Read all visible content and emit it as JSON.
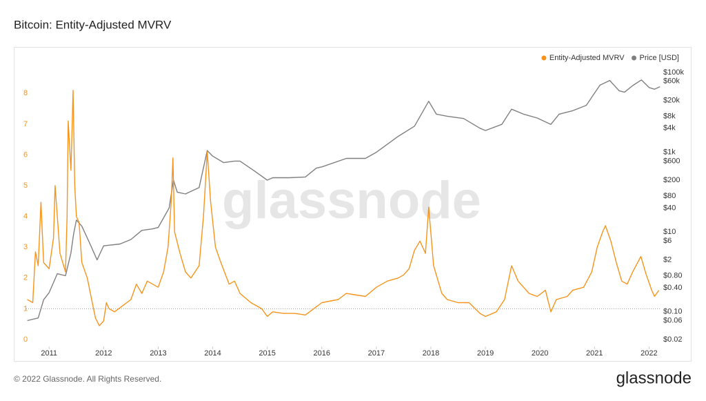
{
  "chart_data": {
    "type": "line",
    "title": "Bitcoin: Entity-Adjusted MVRV",
    "watermark": "glassnode",
    "xlim": [
      2010.58,
      2022.21
    ],
    "xticks": [
      2011,
      2012,
      2013,
      2014,
      2015,
      2016,
      2017,
      2018,
      2019,
      2020,
      2021,
      2022
    ],
    "ylim": [
      -0.18,
      9.06
    ],
    "yticks": [
      0,
      1,
      2,
      3,
      4,
      5,
      6,
      7,
      8
    ],
    "y2lim": [
      0.0146,
      197000
    ],
    "y2scale": "log",
    "y2ticks": [
      {
        "value": 100000,
        "label": "$100k"
      },
      {
        "value": 60000,
        "label": "$60k"
      },
      {
        "value": 20000,
        "label": "$20k"
      },
      {
        "value": 8000,
        "label": "$8k"
      },
      {
        "value": 4000,
        "label": "$4k"
      },
      {
        "value": 1000,
        "label": "$1k"
      },
      {
        "value": 600,
        "label": "$600"
      },
      {
        "value": 200,
        "label": "$200"
      },
      {
        "value": 80,
        "label": "$80"
      },
      {
        "value": 40,
        "label": "$40"
      },
      {
        "value": 10,
        "label": "$10"
      },
      {
        "value": 6,
        "label": "$6"
      },
      {
        "value": 2,
        "label": "$2"
      },
      {
        "value": 0.8,
        "label": "$0.80"
      },
      {
        "value": 0.4,
        "label": "$0.40"
      },
      {
        "value": 0.1,
        "label": "$0.10"
      },
      {
        "value": 0.06,
        "label": "$0.06"
      },
      {
        "value": 0.02,
        "label": "$0.02"
      }
    ],
    "reference_line": 1,
    "legend": "top-right",
    "series": [
      {
        "name": "Entity-Adjusted MVRV",
        "color": "#f7931a",
        "x": [
          2010.6,
          2010.7,
          2010.75,
          2010.8,
          2010.85,
          2010.9,
          2011.0,
          2011.08,
          2011.11,
          2011.2,
          2011.3,
          2011.33,
          2011.35,
          2011.4,
          2011.44,
          2011.47,
          2011.5,
          2011.55,
          2011.6,
          2011.7,
          2011.78,
          2011.85,
          2011.92,
          2012.0,
          2012.05,
          2012.1,
          2012.2,
          2012.35,
          2012.5,
          2012.6,
          2012.7,
          2012.8,
          2013.0,
          2013.1,
          2013.18,
          2013.24,
          2013.27,
          2013.3,
          2013.4,
          2013.5,
          2013.6,
          2013.75,
          2013.83,
          2013.9,
          2013.96,
          2014.05,
          2014.15,
          2014.3,
          2014.4,
          2014.5,
          2014.7,
          2014.9,
          2015.0,
          2015.1,
          2015.3,
          2015.5,
          2015.7,
          2015.85,
          2016.0,
          2016.3,
          2016.45,
          2016.8,
          2017.0,
          2017.2,
          2017.4,
          2017.5,
          2017.6,
          2017.7,
          2017.8,
          2017.9,
          2017.96,
          2018.05,
          2018.2,
          2018.3,
          2018.5,
          2018.7,
          2018.9,
          2019.0,
          2019.2,
          2019.35,
          2019.48,
          2019.6,
          2019.8,
          2019.95,
          2020.1,
          2020.2,
          2020.3,
          2020.5,
          2020.6,
          2020.8,
          2020.95,
          2021.05,
          2021.15,
          2021.2,
          2021.3,
          2021.4,
          2021.5,
          2021.6,
          2021.7,
          2021.85,
          2021.95,
          2022.05,
          2022.1,
          2022.18
        ],
        "values": [
          1.3,
          1.2,
          2.85,
          2.4,
          4.46,
          2.5,
          2.3,
          3.3,
          5.0,
          2.8,
          2.2,
          4.0,
          7.1,
          5.5,
          8.1,
          5.0,
          4.0,
          3.8,
          2.5,
          2.0,
          1.3,
          0.7,
          0.45,
          0.6,
          1.2,
          1.0,
          0.9,
          1.1,
          1.3,
          1.8,
          1.5,
          1.9,
          1.7,
          2.2,
          3.0,
          4.5,
          5.9,
          3.5,
          2.8,
          2.2,
          2.0,
          2.4,
          4.0,
          6.1,
          4.5,
          3.0,
          2.5,
          1.8,
          1.9,
          1.5,
          1.2,
          1.0,
          0.75,
          0.9,
          0.85,
          0.85,
          0.8,
          1.0,
          1.2,
          1.3,
          1.5,
          1.4,
          1.7,
          1.9,
          2.0,
          2.1,
          2.3,
          2.9,
          3.2,
          2.8,
          4.3,
          2.4,
          1.5,
          1.3,
          1.2,
          1.2,
          0.85,
          0.75,
          0.9,
          1.3,
          2.4,
          1.9,
          1.5,
          1.4,
          1.6,
          0.9,
          1.3,
          1.4,
          1.6,
          1.7,
          2.2,
          3.0,
          3.5,
          3.7,
          3.2,
          2.5,
          1.9,
          1.8,
          2.2,
          2.7,
          2.1,
          1.6,
          1.4,
          1.6
        ]
      },
      {
        "name": "Price [USD]",
        "color": "#7f7f7f",
        "axis": "y2",
        "x": [
          2010.6,
          2010.8,
          2010.9,
          2011.0,
          2011.15,
          2011.3,
          2011.4,
          2011.45,
          2011.5,
          2011.6,
          2011.75,
          2011.88,
          2012.0,
          2012.3,
          2012.5,
          2012.7,
          2012.9,
          2013.0,
          2013.2,
          2013.28,
          2013.35,
          2013.5,
          2013.75,
          2013.9,
          2014.0,
          2014.2,
          2014.4,
          2014.5,
          2014.75,
          2015.0,
          2015.1,
          2015.4,
          2015.7,
          2015.9,
          2016.0,
          2016.45,
          2016.8,
          2017.0,
          2017.4,
          2017.7,
          2017.96,
          2018.1,
          2018.3,
          2018.6,
          2018.9,
          2019.0,
          2019.3,
          2019.48,
          2019.7,
          2019.95,
          2020.2,
          2020.35,
          2020.6,
          2020.85,
          2020.99,
          2021.1,
          2021.28,
          2021.45,
          2021.55,
          2021.7,
          2021.86,
          2022.0,
          2022.1,
          2022.2
        ],
        "values": [
          0.06,
          0.07,
          0.2,
          0.3,
          0.9,
          0.8,
          3,
          9,
          20,
          14,
          5,
          2,
          4.5,
          5,
          6.5,
          11,
          12,
          13,
          40,
          200,
          100,
          90,
          130,
          1100,
          800,
          550,
          600,
          600,
          350,
          200,
          230,
          230,
          240,
          400,
          430,
          700,
          700,
          1000,
          2500,
          4500,
          19000,
          9000,
          8000,
          7000,
          4000,
          3500,
          5000,
          12000,
          9000,
          7200,
          5000,
          9000,
          11000,
          15000,
          29000,
          48000,
          63000,
          35000,
          32000,
          47000,
          65000,
          42000,
          38000,
          44000
        ]
      }
    ]
  },
  "page": {
    "footer": "© 2022 Glassnode. All Rights Reserved.",
    "logo": "glassnode"
  }
}
